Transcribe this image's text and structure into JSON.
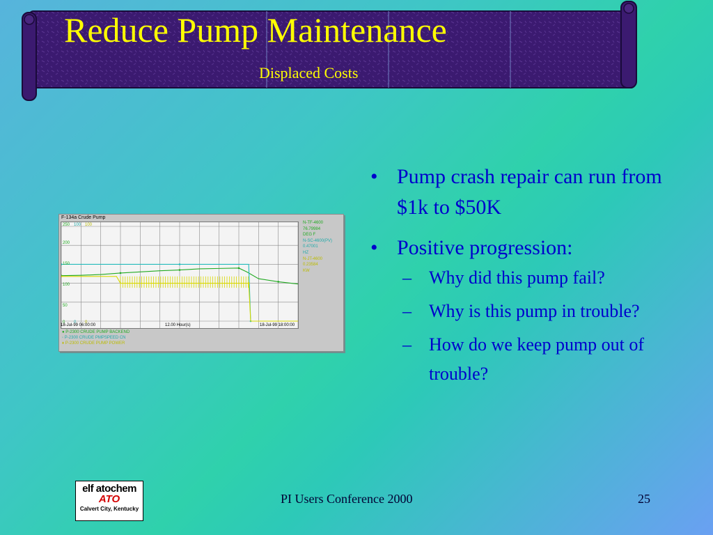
{
  "slide": {
    "title": "Reduce Pump Maintenance",
    "subtitle": "Displaced Costs",
    "colors": {
      "title": "#ffff00",
      "banner": "#3a1a6e",
      "bullets": "#0000cc"
    }
  },
  "chart": {
    "title": "F-134a Crude Pump",
    "y_scale_labels": [
      "250",
      "100",
      "100"
    ],
    "y_ticks": [
      "200",
      "150",
      "100",
      "50",
      "0"
    ],
    "bottom_zero_labels": [
      "0",
      "0",
      "0"
    ],
    "x_start": "18-Jul-99 06:00:00",
    "x_span": "12.00 Hour(s)",
    "x_end": "18-Jul-99 18:00:00",
    "right_values": [
      "N-TF-4600",
      "76.79984",
      "DEG F",
      "N-SC-4600(PV)",
      "0.47001",
      "HZ",
      "N-JT-4600",
      "0.23584",
      "KW"
    ],
    "legend": [
      "P-2300 CRUDE PUMP BACKEND",
      "P-2300 CRUDE PMPSPEED CN",
      "P-2300 CRUDE PUMP POWER"
    ]
  },
  "chart_data": {
    "type": "line",
    "title": "F-134a Crude Pump",
    "xlabel": "",
    "ylabel": "",
    "x_range": [
      "18-Jul-99 06:00:00",
      "18-Jul-99 18:00:00"
    ],
    "ylim": [
      0,
      250
    ],
    "grid": true,
    "legend_position": "bottom",
    "series": [
      {
        "name": "P-2300 CRUDE PUMP BACKEND",
        "color": "#22aa22",
        "x": [
          0,
          1,
          2,
          3,
          4,
          5,
          6,
          7,
          8,
          9,
          9.4,
          10,
          11,
          12
        ],
        "y": [
          120,
          121,
          123,
          127,
          130,
          133,
          135,
          138,
          139,
          140,
          130,
          112,
          104,
          98
        ]
      },
      {
        "name": "P-2300 CRUDE PMPSPEED CN",
        "color": "#22bbbb",
        "x": [
          0,
          2,
          4,
          6,
          8,
          9.5,
          9.6,
          12
        ],
        "y": [
          150,
          150,
          150,
          150,
          150,
          150,
          0,
          0
        ]
      },
      {
        "name": "P-2300 CRUDE PUMP POWER",
        "color": "#d8d800",
        "x": [
          0,
          2.8,
          3.0,
          9.5,
          9.6,
          12
        ],
        "y": [
          118,
          118,
          100,
          100,
          0,
          0
        ]
      }
    ]
  },
  "bullets": {
    "b1": "Pump crash repair can run from $1k to $50K",
    "b2": "Positive progression:",
    "s1": "Why did this pump fail?",
    "s2": "Why is this pump in trouble?",
    "s3": "How do we keep pump out of trouble?"
  },
  "logo": {
    "line1": "elf atochem",
    "line2": "ATO",
    "line3": "Calvert City, Kentucky"
  },
  "footer": {
    "center": "PI Users Conference 2000",
    "page": "25"
  }
}
